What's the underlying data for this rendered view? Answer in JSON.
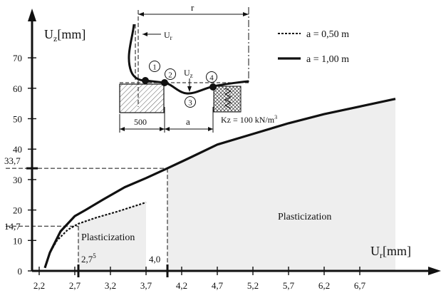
{
  "chart_data": {
    "type": "line",
    "title": "",
    "xlabel": "Ur[mm]",
    "ylabel": "Uz[mm]",
    "xlim": [
      2.2,
      7.4
    ],
    "ylim": [
      0,
      78
    ],
    "x_ticks": [
      "2,2",
      "2,7",
      "3,2",
      "3,7",
      "4,2",
      "4,7",
      "5,2",
      "5,7",
      "6,2",
      "6,7"
    ],
    "y_ticks": [
      "0",
      "10",
      "20",
      "30",
      "40",
      "50",
      "60",
      "70"
    ],
    "extra_y_marks": [
      "14,7",
      "33,7"
    ],
    "x_marks": [
      "2,7",
      "4,0"
    ],
    "x_mark_superscript": "5",
    "legend_placement": "top-right",
    "series": [
      {
        "name": "a = 0,50 m",
        "style": "dotted",
        "x": [
          2.28,
          2.35,
          2.45,
          2.6,
          2.75,
          3.0,
          3.3,
          3.5,
          3.7
        ],
        "y": [
          1,
          6,
          10,
          13.5,
          15.5,
          17.5,
          19.5,
          21,
          22.5
        ]
      },
      {
        "name": "a = 1,00 m",
        "style": "solid",
        "x": [
          2.28,
          2.35,
          2.5,
          2.7,
          2.85,
          3.1,
          3.4,
          3.7,
          4.0,
          4.3,
          4.7,
          5.2,
          5.7,
          6.2,
          6.7,
          7.2
        ],
        "y": [
          1,
          6,
          13,
          18,
          20,
          23.5,
          27.5,
          30.5,
          33.7,
          37,
          41.5,
          45,
          48.5,
          51.5,
          54,
          56.5
        ]
      }
    ],
    "regions": [
      {
        "label": "Plasticization",
        "x_from": 2.75,
        "x_to": 3.7
      },
      {
        "label": "Plasticization",
        "x_from": 4.0,
        "x_to": 7.2
      }
    ]
  },
  "inset": {
    "r_label": "r",
    "ur_label": "Ur",
    "uz_label": "Uz",
    "a_label": "a",
    "dim_500": "500",
    "kz_label": "Kz = 100 kN/m",
    "kz_superscript": "3",
    "markers": [
      "1",
      "2",
      "3",
      "4"
    ]
  }
}
